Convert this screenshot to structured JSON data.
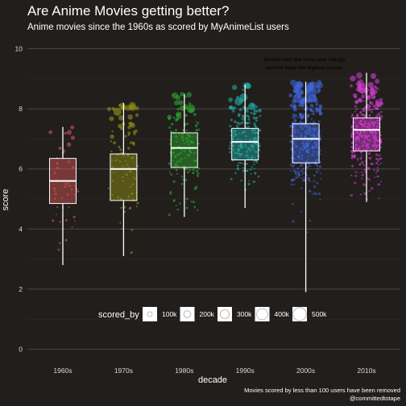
{
  "chart_data": {
    "type": "boxplot",
    "title": "Are Anime Movies getting better?",
    "subtitle": "Anime movies since the 1960s as scored by MyAnimeList users",
    "xlabel": "decade",
    "ylabel": "score",
    "ylim": [
      0,
      10
    ],
    "y_ticks": [
      0,
      2,
      4,
      6,
      8,
      10
    ],
    "grid": true,
    "categories": [
      "1960s",
      "1970s",
      "1980s",
      "1990s",
      "2000s",
      "2010s"
    ],
    "colors": [
      "#e05a5a",
      "#9a9a15",
      "#2fae2f",
      "#20b2aa",
      "#4169e1",
      "#da3fd6"
    ],
    "boxes": [
      {
        "decade": "1960s",
        "min": 2.8,
        "q1": 4.85,
        "median": 5.6,
        "q3": 6.35,
        "max": 7.4,
        "n_points": 45
      },
      {
        "decade": "1970s",
        "min": 3.1,
        "q1": 4.95,
        "median": 6.0,
        "q3": 6.5,
        "max": 8.2,
        "n_points": 85
      },
      {
        "decade": "1980s",
        "min": 4.4,
        "q1": 6.05,
        "median": 6.7,
        "q3": 7.2,
        "max": 8.5,
        "n_points": 150
      },
      {
        "decade": "1990s",
        "min": 4.7,
        "q1": 6.3,
        "median": 6.9,
        "q3": 7.35,
        "max": 8.8,
        "n_points": 200
      },
      {
        "decade": "2000s",
        "min": 1.9,
        "q1": 6.2,
        "median": 7.0,
        "q3": 7.5,
        "max": 8.9,
        "n_points": 380
      },
      {
        "decade": "2010s",
        "min": 4.9,
        "q1": 6.6,
        "median": 7.3,
        "q3": 7.7,
        "max": 9.2,
        "n_points": 340
      }
    ],
    "size_legend": {
      "title": "scored_by",
      "labels": [
        "100k",
        "200k",
        "300k",
        "400k",
        "500k"
      ],
      "values": [
        100000,
        200000,
        300000,
        400000,
        500000
      ]
    },
    "annotation": [
      "Movies with the most user ratings",
      "tend to have the highest scores"
    ],
    "caption": [
      "Movies scored by less than 100 users have been removed",
      "@committedtotape"
    ]
  }
}
